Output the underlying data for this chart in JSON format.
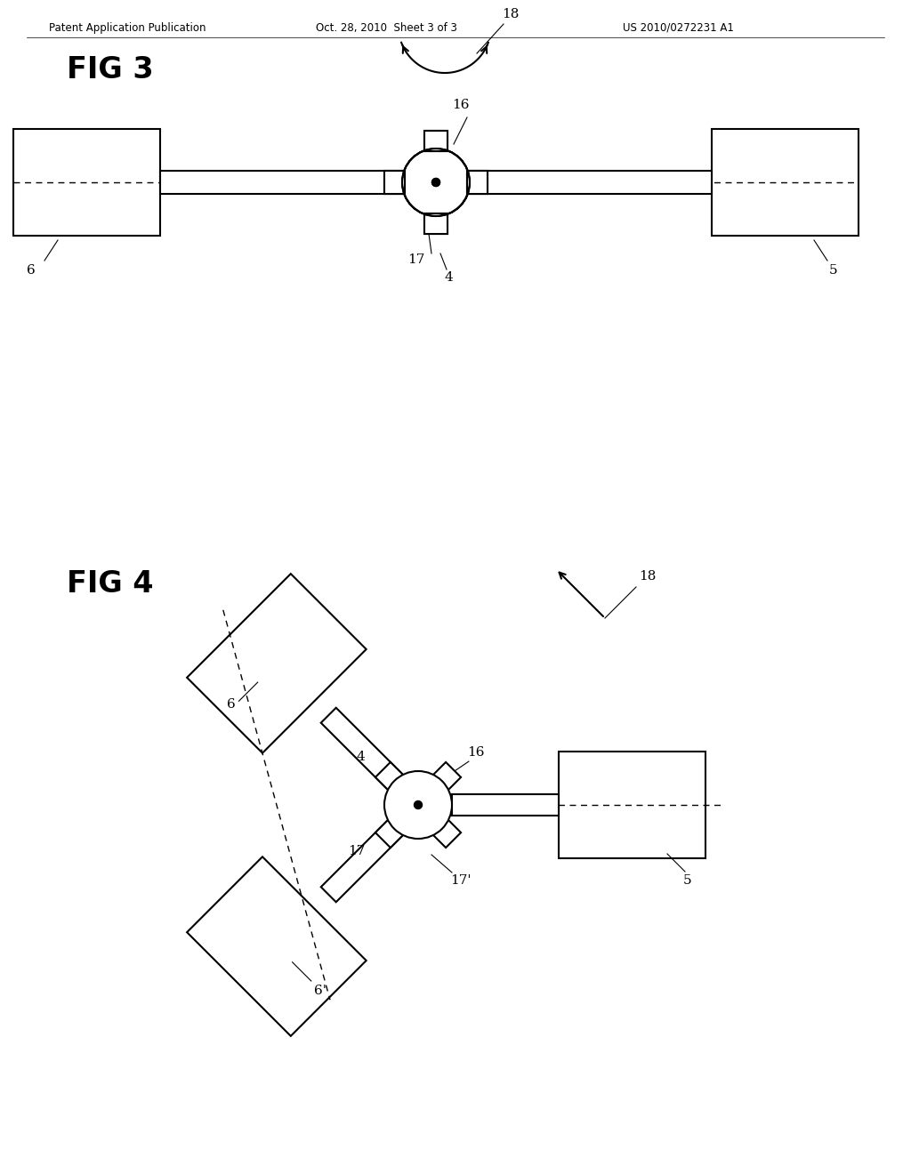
{
  "background_color": "#ffffff",
  "header_left": "Patent Application Publication",
  "header_center": "Oct. 28, 2010  Sheet 3 of 3",
  "header_right": "US 2010/0272231 A1",
  "fig3_label": "FIG 3",
  "fig4_label": "FIG 4",
  "line_color": "#000000"
}
